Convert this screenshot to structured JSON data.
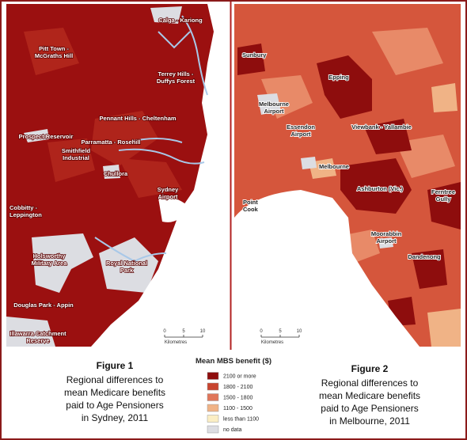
{
  "sydney_map": {
    "labels": [
      {
        "lines": [
          "Calga - Kariong"
        ]
      },
      {
        "lines": [
          "Pitt Town -",
          "McGraths Hill"
        ]
      },
      {
        "lines": [
          "Terrey Hills -",
          "Duffys Forest"
        ]
      },
      {
        "lines": [
          "Pennant Hills - Cheltenham"
        ]
      },
      {
        "lines": [
          "Prospect Reservoir"
        ]
      },
      {
        "lines": [
          "Parramatta - Rosehill"
        ]
      },
      {
        "lines": [
          "Smithfield",
          "Industrial"
        ]
      },
      {
        "lines": [
          "Chullora"
        ]
      },
      {
        "lines": [
          "Sydney",
          "Airport"
        ]
      },
      {
        "lines": [
          "Cobbitty -",
          "Leppington"
        ]
      },
      {
        "lines": [
          "Holsworthy",
          "Military Area"
        ]
      },
      {
        "lines": [
          "Royal National",
          "Park"
        ]
      },
      {
        "lines": [
          "Douglas Park - Appin"
        ]
      },
      {
        "lines": [
          "Illawarra Catchment",
          "Reserve"
        ]
      }
    ],
    "scale": {
      "ticks": [
        "0",
        "5",
        "10"
      ],
      "unit": "Kilometres"
    }
  },
  "melbourne_map": {
    "labels": [
      {
        "lines": [
          "Sunbury"
        ]
      },
      {
        "lines": [
          "Epping"
        ]
      },
      {
        "lines": [
          "Melbourne",
          "Airport"
        ]
      },
      {
        "lines": [
          "Essendon",
          "Airport"
        ]
      },
      {
        "lines": [
          "Viewbank - Yallambie"
        ]
      },
      {
        "lines": [
          "Melbourne"
        ]
      },
      {
        "lines": [
          "Ashburton (Vic.)"
        ]
      },
      {
        "lines": [
          "Ferntree",
          "Gully"
        ]
      },
      {
        "lines": [
          "Point",
          "Cook"
        ]
      },
      {
        "lines": [
          "Moorabbin",
          "Airport"
        ]
      },
      {
        "lines": [
          "Dandenong"
        ]
      }
    ],
    "scale": {
      "ticks": [
        "0",
        "5",
        "10"
      ],
      "unit": "Kilometres"
    }
  },
  "legend": {
    "title": "Mean MBS benefit ($)",
    "items": [
      {
        "label": "2100 or more",
        "color": "#8e0d0d"
      },
      {
        "label": "1800 - 2100",
        "color": "#c8442f"
      },
      {
        "label": "1500 - 1800",
        "color": "#e0765a"
      },
      {
        "label": "1100 - 1500",
        "color": "#f0b386"
      },
      {
        "label": "less than 1100",
        "color": "#fbeec4"
      },
      {
        "label": "no data",
        "color": "#dcdde2"
      }
    ]
  },
  "figure_1": {
    "title": "Figure 1",
    "caption": [
      "Regional differences to",
      "mean Medicare benefits",
      "paid to Age Pensioners",
      "in Sydney,  2011"
    ]
  },
  "figure_2": {
    "title": "Figure 2",
    "caption": [
      "Regional differences to",
      "mean Medicare benefits",
      "paid to Age Pensioners",
      "in Melbourne,  2011"
    ]
  }
}
